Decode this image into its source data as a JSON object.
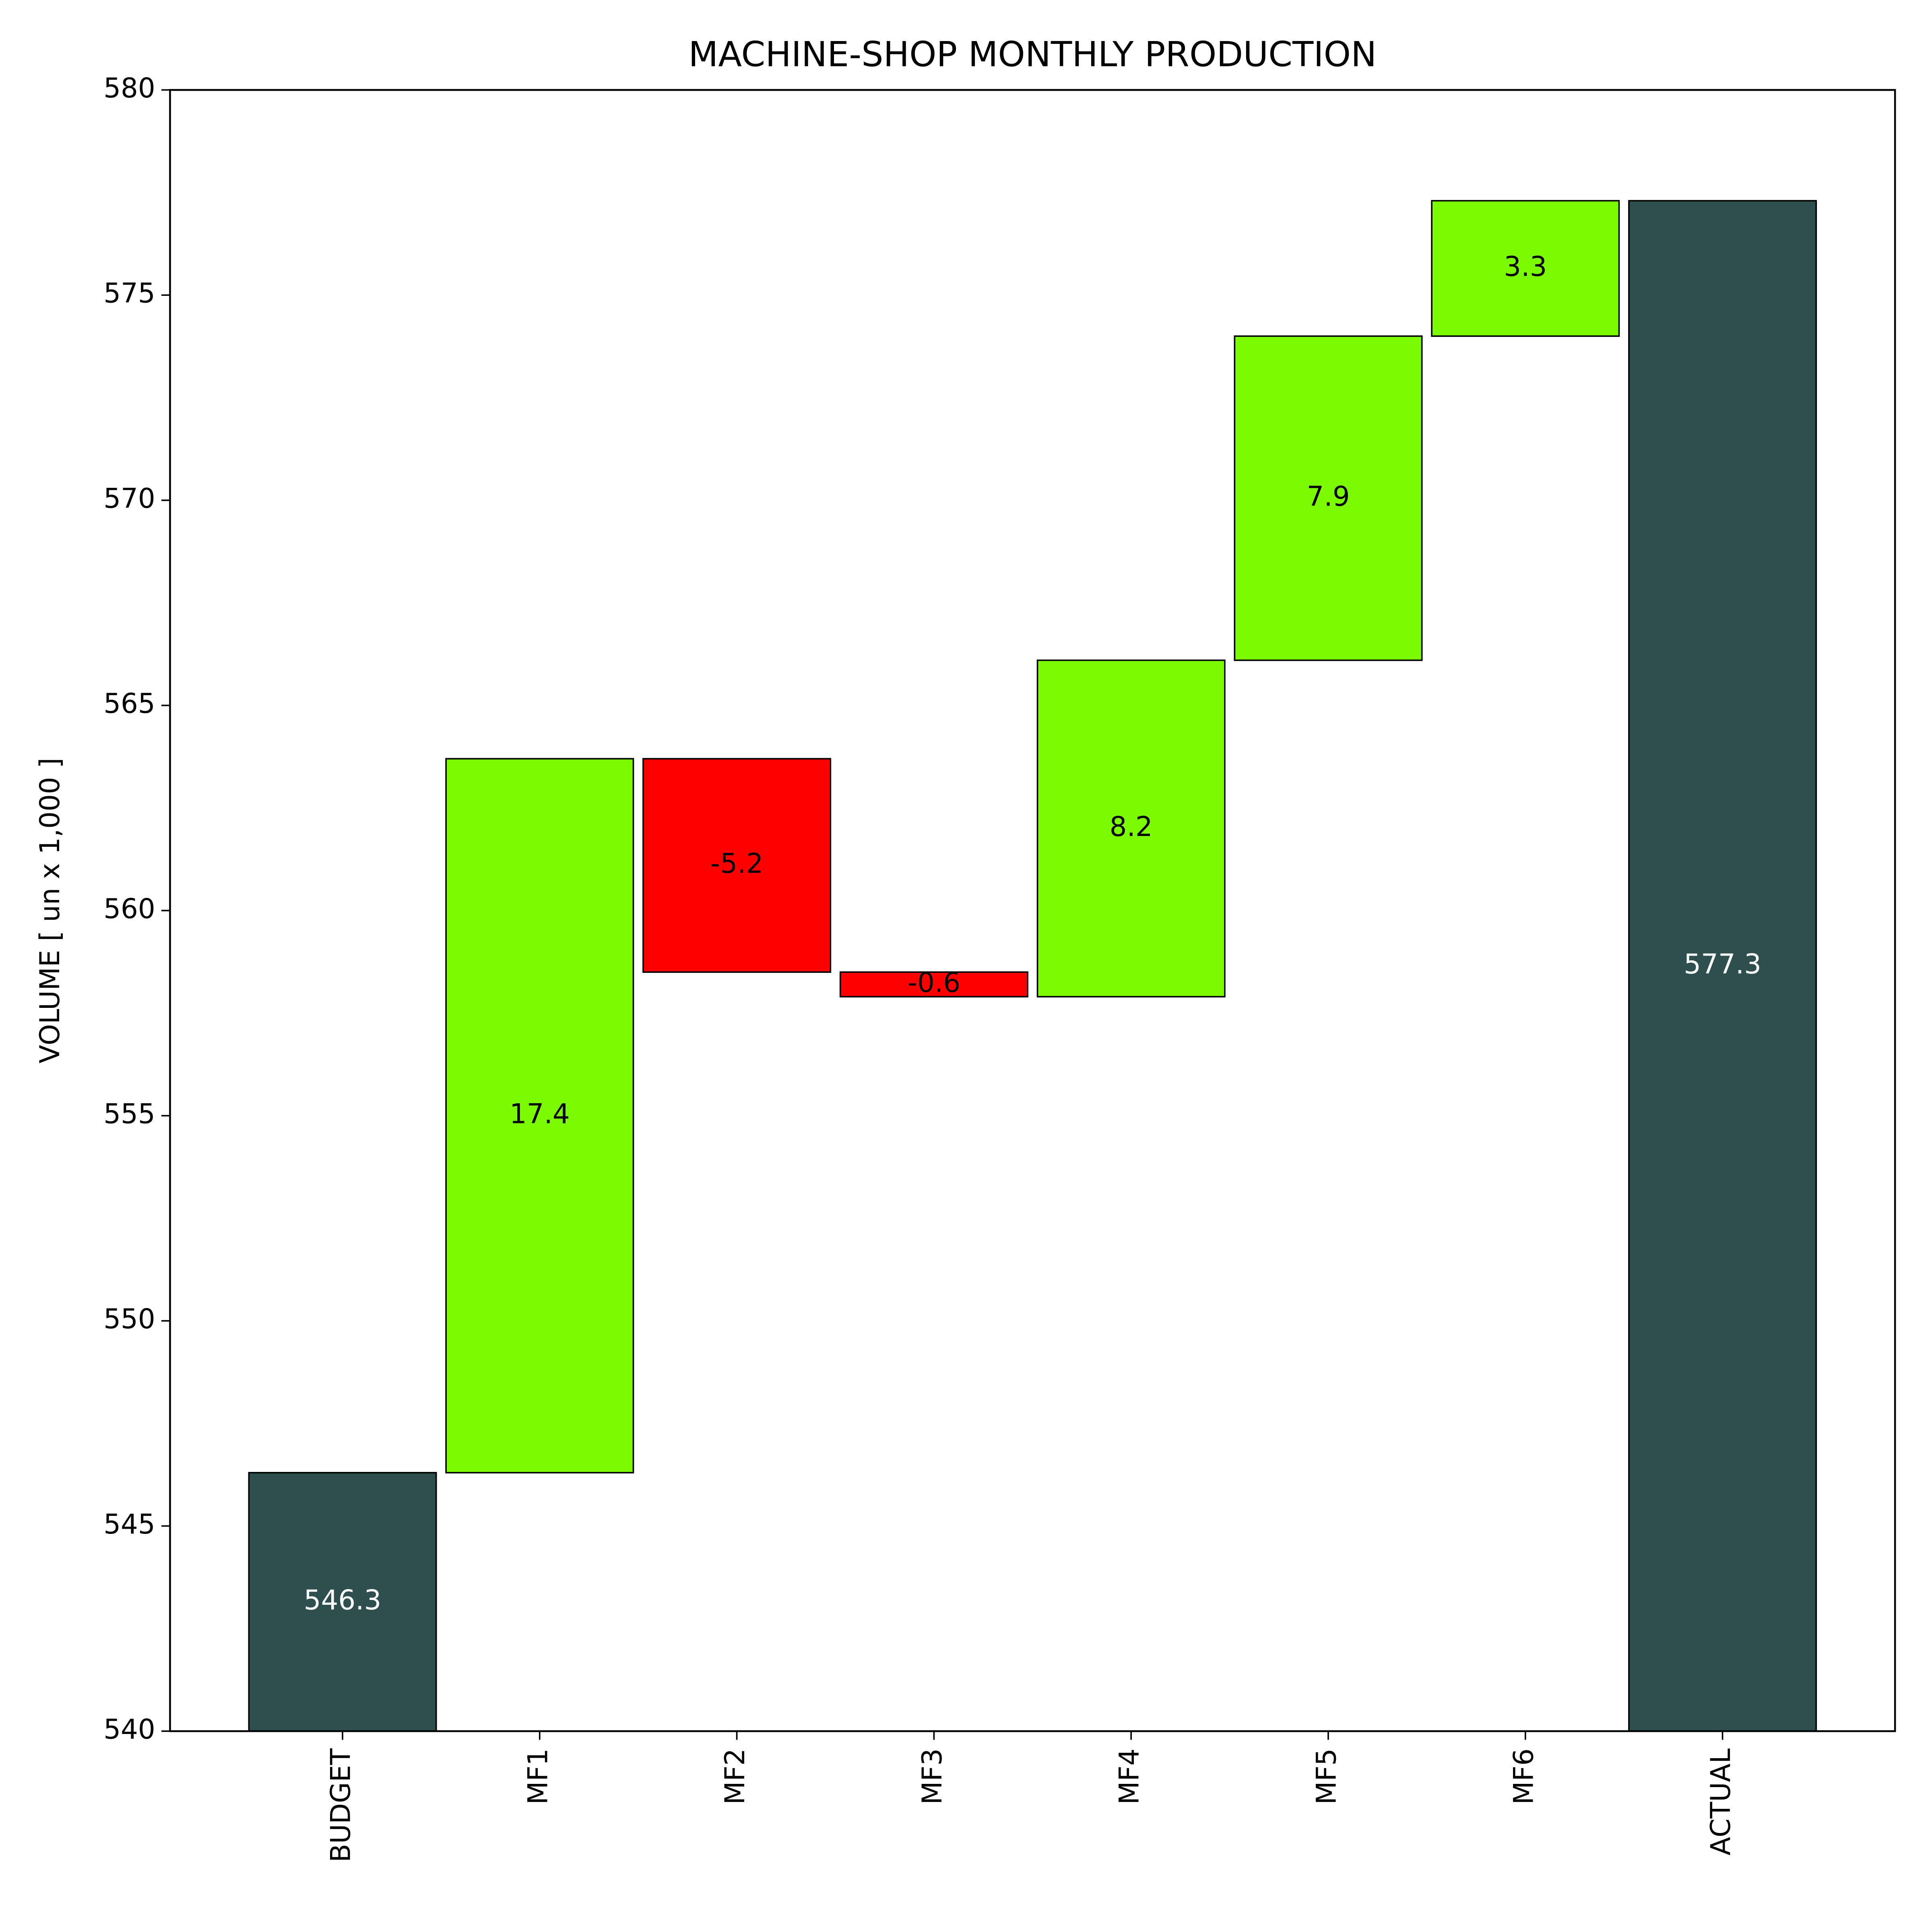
{
  "chart_data": {
    "type": "waterfall",
    "title": "MACHINE-SHOP MONTHLY PRODUCTION",
    "y_label": "VOLUME [ un x 1,000 ]",
    "categories": [
      "BUDGET",
      "MF1",
      "MF2",
      "MF3",
      "MF4",
      "MF5",
      "MF6",
      "ACTUAL"
    ],
    "values": [
      546.3,
      17.4,
      -5.2,
      -0.6,
      8.2,
      7.9,
      3.3,
      577.3
    ],
    "total_color": "#2f4f4f",
    "increase_color": "#7cfc00",
    "decrease_color": "#ff0000",
    "ylim": [
      540,
      580
    ],
    "yticks": [
      540,
      545,
      550,
      555,
      560,
      565,
      570,
      575,
      580
    ]
  }
}
